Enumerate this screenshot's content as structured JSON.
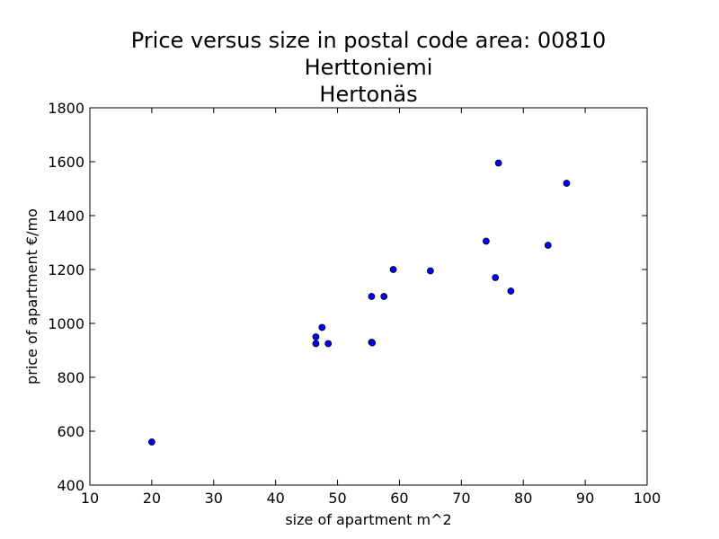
{
  "chart_data": {
    "type": "scatter",
    "title_lines": [
      "Price versus size in postal code area: 00810",
      "Herttoniemi",
      "Hertonäs"
    ],
    "xlabel": "size of apartment m^2",
    "ylabel": "price of apartment €/mo",
    "xlim": [
      10,
      100
    ],
    "ylim": [
      400,
      1800
    ],
    "xticks": [
      10,
      20,
      30,
      40,
      50,
      60,
      70,
      80,
      90,
      100
    ],
    "yticks": [
      400,
      600,
      800,
      1000,
      1200,
      1400,
      1600,
      1800
    ],
    "grid": false,
    "marker_color": "#0000ff",
    "points": [
      {
        "x": 20,
        "y": 560
      },
      {
        "x": 46.5,
        "y": 950
      },
      {
        "x": 46.5,
        "y": 925
      },
      {
        "x": 47.5,
        "y": 985
      },
      {
        "x": 48.5,
        "y": 925
      },
      {
        "x": 55.5,
        "y": 1100
      },
      {
        "x": 55.5,
        "y": 930
      },
      {
        "x": 55.6,
        "y": 928
      },
      {
        "x": 57.5,
        "y": 1100
      },
      {
        "x": 59,
        "y": 1200
      },
      {
        "x": 65,
        "y": 1195
      },
      {
        "x": 74,
        "y": 1305
      },
      {
        "x": 75.5,
        "y": 1170
      },
      {
        "x": 76,
        "y": 1595
      },
      {
        "x": 78,
        "y": 1120
      },
      {
        "x": 84,
        "y": 1290
      },
      {
        "x": 87,
        "y": 1520
      }
    ]
  }
}
